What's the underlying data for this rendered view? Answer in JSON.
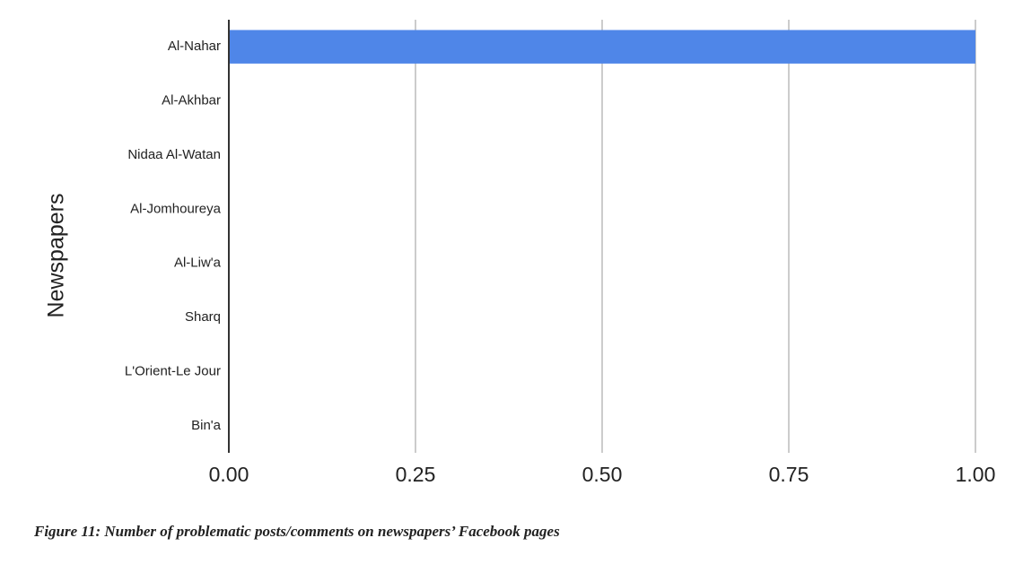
{
  "chart_data": {
    "type": "bar",
    "orientation": "horizontal",
    "y_axis_label": "Newspapers",
    "caption": "Figure 11: Number of problematic posts/comments on newspapers’ Facebook pages",
    "categories": [
      "Al-Nahar",
      "Al-Akhbar",
      "Nidaa Al-Watan",
      "Al-Jomhoureya",
      "Al-Liw'a",
      "Sharq",
      "L'Orient-Le Jour",
      "Bin'a"
    ],
    "values": [
      1,
      0,
      0,
      0,
      0,
      0,
      0,
      0
    ],
    "color": "#4f86e8",
    "xlim": [
      0,
      1
    ],
    "xticks": [
      {
        "value": 0,
        "label": "0.00"
      },
      {
        "value": 0.25,
        "label": "0.25"
      },
      {
        "value": 0.5,
        "label": "0.50"
      },
      {
        "value": 0.75,
        "label": "0.75"
      },
      {
        "value": 1,
        "label": "1.00"
      }
    ],
    "grid": true
  }
}
